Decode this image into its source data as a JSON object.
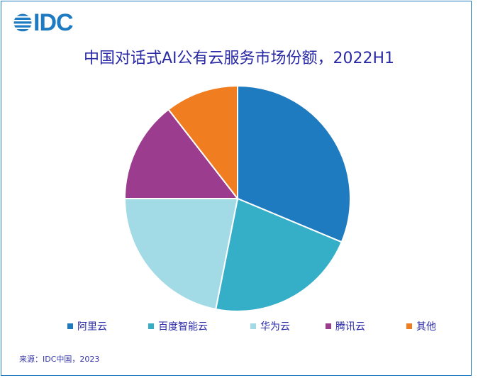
{
  "logo": {
    "text": "IDC",
    "icon": "idc-globe-icon"
  },
  "title": "中国对话式AI公有云服务市场份额，2022H1",
  "source": "来源：IDC中国，2023",
  "colors": {
    "frame": "#1f7bc1",
    "title": "#2a2aa6"
  },
  "legend": [
    {
      "label": "阿里云",
      "color": "#1f7bc0"
    },
    {
      "label": "百度智能云",
      "color": "#35afc7"
    },
    {
      "label": "华为云",
      "color": "#a2dbe5"
    },
    {
      "label": "腾讯云",
      "color": "#9c3c8e"
    },
    {
      "label": "其他",
      "color": "#f07d20"
    }
  ],
  "chart_data": {
    "type": "pie",
    "title": "中国对话式AI公有云服务市场份额，2022H1",
    "categories": [
      "阿里云",
      "百度智能云",
      "华为云",
      "腾讯云",
      "其他"
    ],
    "values": [
      31.3,
      21.8,
      21.9,
      14.5,
      10.5
    ],
    "unit": "%",
    "colors": [
      "#1f7bc0",
      "#35afc7",
      "#a2dbe5",
      "#9c3c8e",
      "#f07d20"
    ],
    "start_angle": "12 o'clock, clockwise",
    "data_labels": false,
    "legend_position": "bottom",
    "source": "来源：IDC中国，2023"
  }
}
